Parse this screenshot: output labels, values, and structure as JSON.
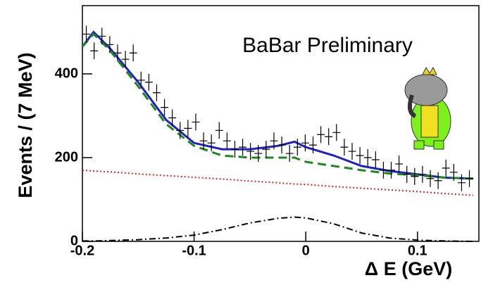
{
  "chart_data": {
    "type": "scatter",
    "title": "BaBar Preliminary",
    "xlabel": "Δ E (GeV)",
    "ylabel": "Events / (7 MeV)",
    "xlim": [
      -0.2,
      0.155
    ],
    "ylim": [
      0,
      563
    ],
    "xticks": [
      -0.2,
      -0.1,
      0,
      0.1
    ],
    "yticks": [
      0,
      200,
      400
    ],
    "x": [
      -0.1965,
      -0.1895,
      -0.1825,
      -0.1755,
      -0.1685,
      -0.1615,
      -0.1545,
      -0.1475,
      -0.1405,
      -0.1335,
      -0.1265,
      -0.1195,
      -0.1125,
      -0.1055,
      -0.0985,
      -0.0915,
      -0.0845,
      -0.0775,
      -0.0705,
      -0.0635,
      -0.0565,
      -0.0495,
      -0.0425,
      -0.0355,
      -0.0285,
      -0.0215,
      -0.0145,
      -0.0075,
      -0.0005,
      0.0065,
      0.0135,
      0.0205,
      0.0275,
      0.0345,
      0.0415,
      0.0485,
      0.0555,
      0.0625,
      0.0695,
      0.0765,
      0.0835,
      0.0905,
      0.0975,
      0.1045,
      0.1115,
      0.1185,
      0.1255,
      0.1325,
      0.1395,
      0.1465
    ],
    "values": [
      495,
      455,
      490,
      470,
      450,
      435,
      450,
      385,
      380,
      355,
      320,
      295,
      265,
      270,
      285,
      240,
      235,
      265,
      240,
      220,
      225,
      215,
      210,
      220,
      240,
      230,
      210,
      225,
      235,
      230,
      255,
      250,
      260,
      225,
      215,
      205,
      200,
      195,
      170,
      170,
      185,
      160,
      155,
      160,
      150,
      145,
      175,
      165,
      140,
      150
    ],
    "color": "#000000",
    "curve_x": [
      -0.2,
      -0.19,
      -0.175,
      -0.15,
      -0.125,
      -0.1,
      -0.075,
      -0.05,
      -0.025,
      -0.01,
      0,
      0.025,
      0.05,
      0.075,
      0.1,
      0.125,
      0.15
    ],
    "series": [
      {
        "color": "#1f1fcc",
        "dash": "",
        "width": 3,
        "values": [
          465,
          500,
          460,
          380,
          290,
          235,
          220,
          220,
          228,
          238,
          225,
          205,
          180,
          168,
          160,
          152,
          150
        ]
      },
      {
        "color": "#1a8a1a",
        "dash": "12 7",
        "width": 3,
        "values": [
          465,
          495,
          455,
          370,
          280,
          228,
          205,
          200,
          200,
          200,
          190,
          180,
          170,
          162,
          158,
          152,
          150
        ]
      },
      {
        "color": "#e02020",
        "dash": "2 3",
        "width": 2,
        "values": [
          170,
          168,
          166,
          161,
          157,
          153,
          149,
          144,
          140,
          137,
          136,
          131,
          127,
          123,
          119,
          114,
          110
        ]
      },
      {
        "color": "#000000",
        "dash": "9 4 2 4",
        "width": 2,
        "values": [
          1,
          1,
          2,
          4,
          8,
          15,
          28,
          44,
          55,
          58,
          56,
          42,
          20,
          8,
          3,
          1,
          0
        ]
      }
    ]
  }
}
